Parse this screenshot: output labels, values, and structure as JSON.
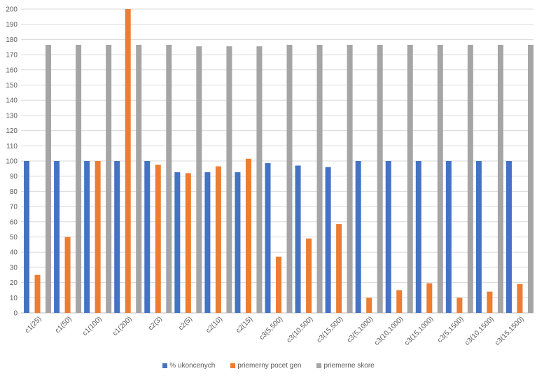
{
  "chart_data": {
    "type": "bar",
    "title": "",
    "xlabel": "",
    "ylabel": "",
    "ylim": [
      0,
      200
    ],
    "yticks": [
      0,
      10,
      20,
      30,
      40,
      50,
      60,
      70,
      80,
      90,
      100,
      110,
      120,
      130,
      140,
      150,
      160,
      170,
      180,
      190,
      200
    ],
    "grid": true,
    "legend_position": "bottom",
    "categories": [
      "c1(25)",
      "c1(50)",
      "c1(100)",
      "c1(200)",
      "c2(3)",
      "c2(5)",
      "c2(10)",
      "c2(15)",
      "c3(5,500)",
      "c3(10,500)",
      "c3(15,500)",
      "c3(5,1000)",
      "c3(10,1000)",
      "c3(15,1000)",
      "c3(5,1500)",
      "c3(10,1500)",
      "c3(15,1500)"
    ],
    "series": [
      {
        "name": "% ukoncenych",
        "color": "#4472C4",
        "values": [
          100,
          100,
          100,
          100,
          100,
          92.6,
          92.6,
          92.6,
          98.6,
          97,
          96,
          100,
          100,
          100,
          100,
          100,
          100
        ]
      },
      {
        "name": "priemerny pocet gen",
        "color": "#ED7D31",
        "values": [
          25,
          50,
          100,
          200,
          97.5,
          92,
          96.5,
          101.5,
          37,
          49,
          58.5,
          10,
          15,
          19.5,
          10,
          14,
          19
        ]
      },
      {
        "name": "priemerne skore",
        "color": "#A5A5A5",
        "values": [
          176.5,
          176.5,
          176.5,
          176.5,
          176.5,
          175.5,
          175.5,
          175.5,
          176.5,
          176.5,
          176.5,
          176.5,
          176.5,
          176.5,
          176.5,
          176.5,
          176.5
        ]
      }
    ]
  }
}
